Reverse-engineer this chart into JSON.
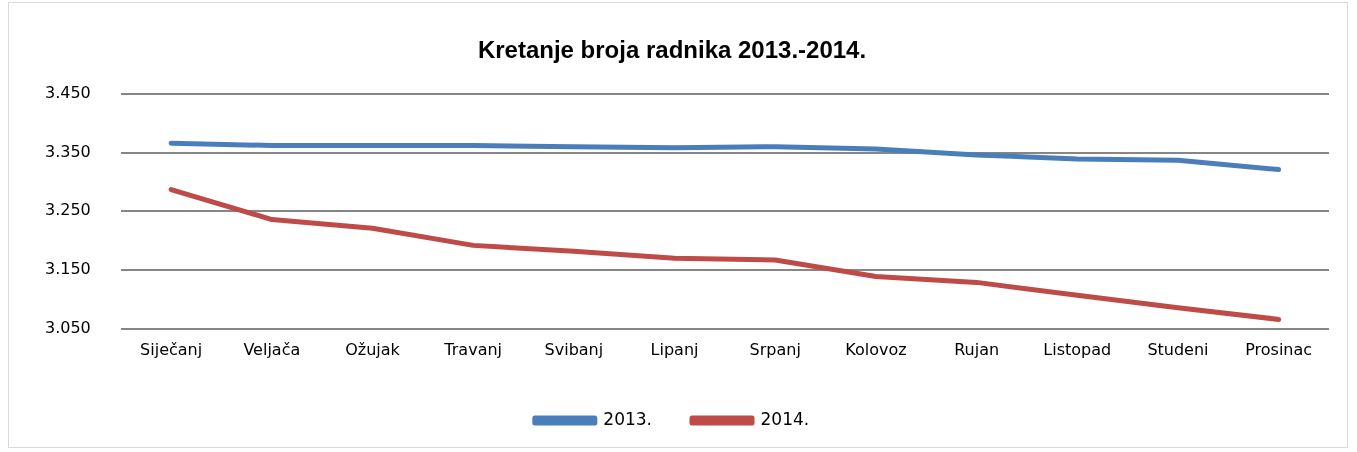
{
  "chart_data": {
    "type": "line",
    "title": "Kretanje broja radnika 2013.-2014.",
    "categories": [
      "Siječanj",
      "Veljača",
      "Ožujak",
      "Travanj",
      "Svibanj",
      "Lipanj",
      "Srpanj",
      "Kolovoz",
      "Rujan",
      "Listopad",
      "Studeni",
      "Prosinac"
    ],
    "series": [
      {
        "name": "2013.",
        "color": "#4a7ebb",
        "values": [
          3366,
          3362,
          3362,
          3362,
          3360,
          3358,
          3360,
          3356,
          3346,
          3339,
          3337,
          3321
        ]
      },
      {
        "name": "2014.",
        "color": "#be4b48",
        "values": [
          3287,
          3236,
          3221,
          3192,
          3182,
          3170,
          3167,
          3139,
          3129,
          3107,
          3086,
          3066
        ]
      }
    ],
    "ylim": [
      3050,
      3450
    ],
    "yticks": [
      {
        "value": 3050,
        "label": "3.050"
      },
      {
        "value": 3150,
        "label": "3.150"
      },
      {
        "value": 3250,
        "label": "3.250"
      },
      {
        "value": 3350,
        "label": "3.350"
      },
      {
        "value": 3450,
        "label": "3.450"
      }
    ],
    "grid": "y",
    "legend": "bottom",
    "marker": "none",
    "line_style": "solid"
  }
}
